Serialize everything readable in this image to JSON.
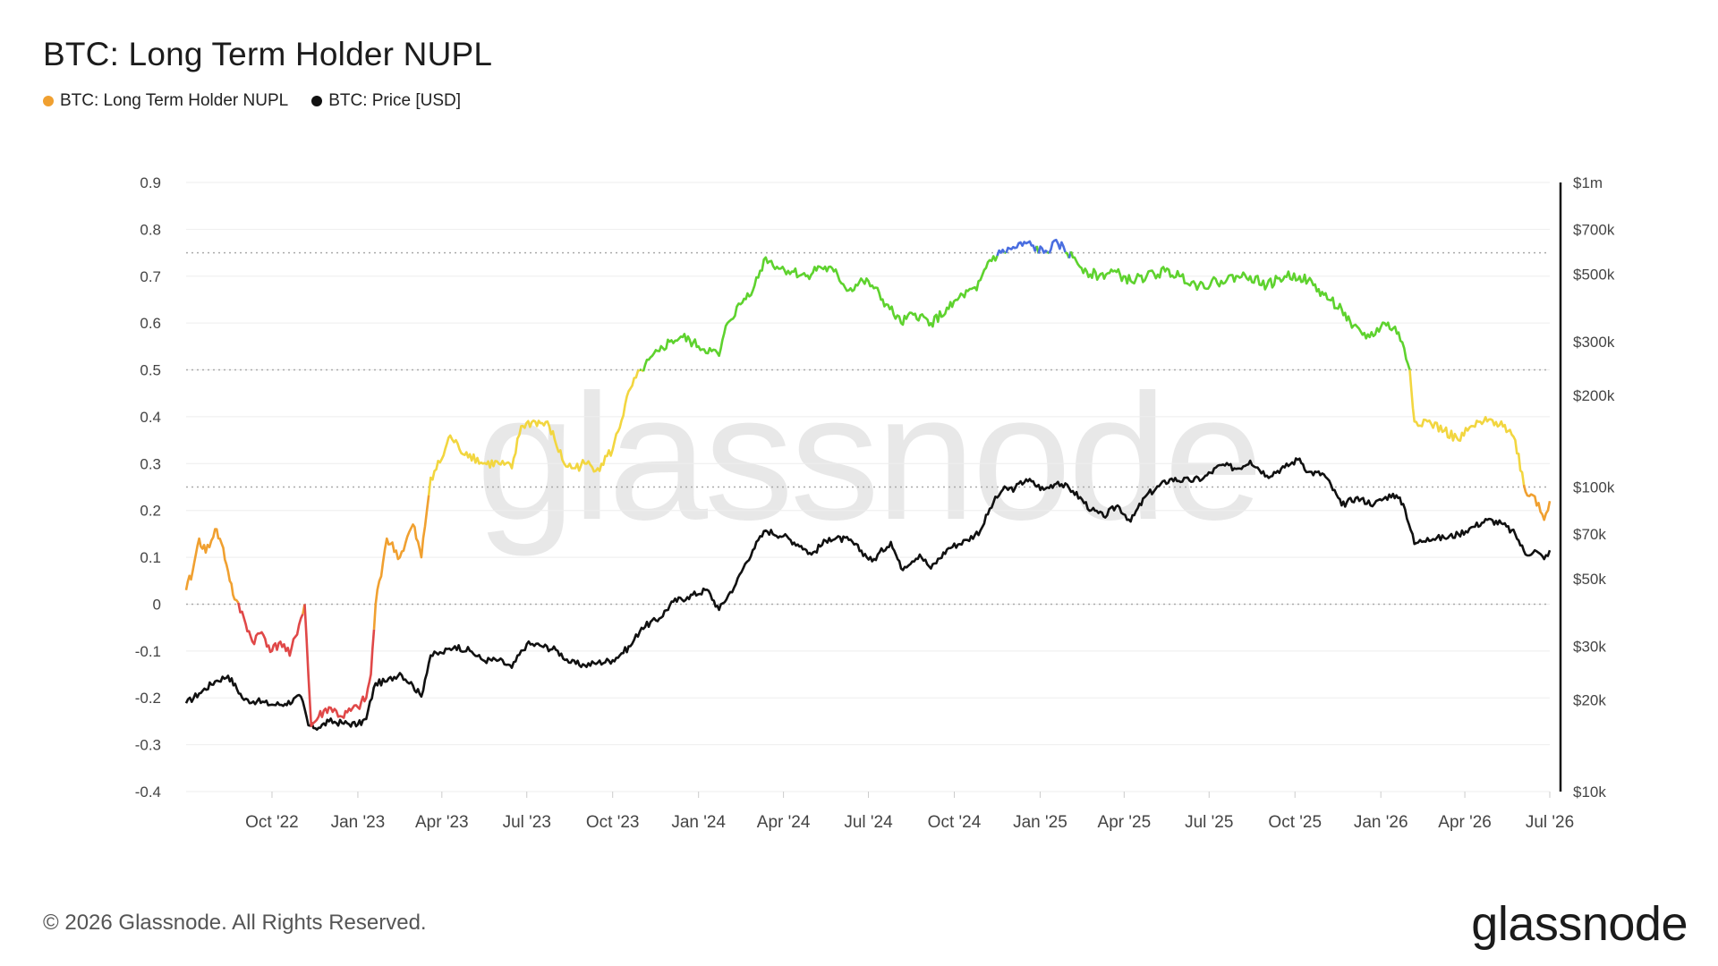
{
  "header": {
    "title": "BTC: Long Term Holder NUPL"
  },
  "legend": [
    {
      "label": "BTC: Long Term Holder NUPL",
      "color": "#f0a030"
    },
    {
      "label": "BTC: Price [USD]",
      "color": "#111111"
    }
  ],
  "footer": {
    "copyright": "© 2026 Glassnode. All Rights Reserved.",
    "brand": "glassnode",
    "watermark": "glassnode"
  },
  "chart_data": {
    "type": "line",
    "title": "BTC: Long Term Holder NUPL",
    "x_ticks": [
      "Oct '22",
      "Jan '23",
      "Apr '23",
      "Jul '23",
      "Oct '23",
      "Jan '24",
      "Apr '24",
      "Jul '24",
      "Oct '24",
      "Jan '25",
      "Apr '25",
      "Jul '25",
      "Oct '25",
      "Jan '26",
      "Apr '26",
      "Jul '26"
    ],
    "left_axis": {
      "ticks": [
        "0.9",
        "0.8",
        "0.7",
        "0.6",
        "0.5",
        "0.4",
        "0.3",
        "0.2",
        "0.1",
        "0",
        "-0.1",
        "-0.2",
        "-0.3",
        "-0.4"
      ],
      "range": [
        -0.4,
        0.9
      ]
    },
    "right_axis": {
      "scale": "log",
      "ticks": [
        "$1m",
        "$700k",
        "$500k",
        "$300k",
        "$200k",
        "$100k",
        "$70k",
        "$50k",
        "$30k",
        "$20k",
        "$10k"
      ],
      "range": [
        10000,
        1000000
      ]
    },
    "grid": true,
    "reference_lines": [
      0.75,
      0.5,
      0.25,
      0
    ],
    "zone_colors": {
      "capitulation": "#e04848",
      "hope_fear": "#f0a030",
      "optimism": "#f2d640",
      "belief": "#5ed22e",
      "euphoria": "#4a6ee0"
    },
    "series": [
      {
        "name": "BTC: Long Term Holder NUPL",
        "x": [
          "2022-07-01",
          "2022-07-08",
          "2022-07-15",
          "2022-07-22",
          "2022-08-01",
          "2022-08-08",
          "2022-08-15",
          "2022-08-22",
          "2022-09-01",
          "2022-09-10",
          "2022-09-20",
          "2022-10-01",
          "2022-10-10",
          "2022-10-20",
          "2022-11-01",
          "2022-11-05",
          "2022-11-09",
          "2022-11-12",
          "2022-11-20",
          "2022-12-01",
          "2022-12-15",
          "2023-01-01",
          "2023-01-10",
          "2023-01-15",
          "2023-01-20",
          "2023-02-01",
          "2023-02-15",
          "2023-03-01",
          "2023-03-10",
          "2023-03-20",
          "2023-04-01",
          "2023-04-10",
          "2023-04-20",
          "2023-05-01",
          "2023-05-15",
          "2023-06-01",
          "2023-06-15",
          "2023-06-25",
          "2023-07-10",
          "2023-07-25",
          "2023-08-10",
          "2023-08-20",
          "2023-09-01",
          "2023-09-15",
          "2023-10-01",
          "2023-10-20",
          "2023-11-01",
          "2023-11-20",
          "2023-12-01",
          "2023-12-15",
          "2024-01-01",
          "2024-01-15",
          "2024-01-23",
          "2024-02-01",
          "2024-02-15",
          "2024-03-01",
          "2024-03-13",
          "2024-03-25",
          "2024-04-10",
          "2024-04-25",
          "2024-05-10",
          "2024-05-25",
          "2024-06-10",
          "2024-06-25",
          "2024-07-05",
          "2024-07-20",
          "2024-08-05",
          "2024-08-20",
          "2024-09-06",
          "2024-09-25",
          "2024-10-10",
          "2024-10-25",
          "2024-11-06",
          "2024-11-20",
          "2024-12-05",
          "2024-12-17",
          "2025-01-05",
          "2025-01-20",
          "2025-02-05",
          "2025-02-20",
          "2025-03-05",
          "2025-03-20",
          "2025-04-08",
          "2025-04-25",
          "2025-05-15",
          "2025-06-01",
          "2025-06-20",
          "2025-07-14",
          "2025-08-01",
          "2025-08-14",
          "2025-09-01",
          "2025-09-20",
          "2025-10-06",
          "2025-10-15",
          "2025-11-01",
          "2025-11-20",
          "2025-12-01",
          "2025-12-20",
          "2026-01-05",
          "2026-01-20",
          "2026-02-01",
          "2026-02-06",
          "2026-02-20",
          "2026-03-10",
          "2026-03-25",
          "2026-04-10",
          "2026-04-25",
          "2026-05-10",
          "2026-05-25",
          "2026-06-05",
          "2026-06-15",
          "2026-06-25",
          "2026-07-01"
        ],
        "values": [
          0.03,
          0.07,
          0.14,
          0.11,
          0.16,
          0.13,
          0.07,
          0.01,
          -0.03,
          -0.08,
          -0.06,
          -0.1,
          -0.08,
          -0.11,
          -0.03,
          0.0,
          -0.15,
          -0.26,
          -0.24,
          -0.22,
          -0.24,
          -0.22,
          -0.2,
          -0.15,
          0.0,
          0.14,
          0.1,
          0.17,
          0.1,
          0.27,
          0.31,
          0.36,
          0.33,
          0.32,
          0.3,
          0.3,
          0.29,
          0.38,
          0.39,
          0.38,
          0.3,
          0.29,
          0.3,
          0.29,
          0.33,
          0.46,
          0.5,
          0.54,
          0.56,
          0.57,
          0.55,
          0.54,
          0.53,
          0.6,
          0.64,
          0.68,
          0.74,
          0.72,
          0.71,
          0.7,
          0.72,
          0.71,
          0.67,
          0.69,
          0.68,
          0.64,
          0.6,
          0.62,
          0.6,
          0.63,
          0.66,
          0.67,
          0.73,
          0.75,
          0.76,
          0.77,
          0.75,
          0.77,
          0.74,
          0.71,
          0.7,
          0.71,
          0.69,
          0.7,
          0.71,
          0.7,
          0.68,
          0.69,
          0.7,
          0.7,
          0.68,
          0.7,
          0.7,
          0.69,
          0.66,
          0.63,
          0.59,
          0.57,
          0.6,
          0.58,
          0.5,
          0.39,
          0.39,
          0.37,
          0.35,
          0.38,
          0.39,
          0.39,
          0.35,
          0.24,
          0.23,
          0.18,
          0.22
        ]
      },
      {
        "name": "BTC: Price [USD]",
        "x": [
          "2022-07-01",
          "2022-07-15",
          "2022-08-01",
          "2022-08-15",
          "2022-09-01",
          "2022-09-15",
          "2022-10-01",
          "2022-10-15",
          "2022-11-01",
          "2022-11-09",
          "2022-11-20",
          "2022-12-01",
          "2022-12-15",
          "2023-01-01",
          "2023-01-10",
          "2023-01-20",
          "2023-02-01",
          "2023-02-15",
          "2023-03-01",
          "2023-03-10",
          "2023-03-20",
          "2023-04-01",
          "2023-04-15",
          "2023-05-01",
          "2023-05-15",
          "2023-06-01",
          "2023-06-15",
          "2023-07-01",
          "2023-07-15",
          "2023-08-01",
          "2023-08-17",
          "2023-09-01",
          "2023-09-15",
          "2023-10-01",
          "2023-10-20",
          "2023-11-01",
          "2023-11-20",
          "2023-12-05",
          "2023-12-20",
          "2024-01-10",
          "2024-01-23",
          "2024-02-10",
          "2024-02-28",
          "2024-03-13",
          "2024-04-01",
          "2024-04-20",
          "2024-05-01",
          "2024-05-20",
          "2024-06-10",
          "2024-07-05",
          "2024-07-25",
          "2024-08-05",
          "2024-08-25",
          "2024-09-06",
          "2024-09-25",
          "2024-10-15",
          "2024-10-29",
          "2024-11-12",
          "2024-11-22",
          "2024-12-05",
          "2024-12-17",
          "2025-01-05",
          "2025-01-20",
          "2025-02-05",
          "2025-02-25",
          "2025-03-10",
          "2025-03-25",
          "2025-04-08",
          "2025-04-25",
          "2025-05-20",
          "2025-06-10",
          "2025-06-25",
          "2025-07-14",
          "2025-08-01",
          "2025-08-14",
          "2025-09-01",
          "2025-09-20",
          "2025-10-06",
          "2025-10-15",
          "2025-11-01",
          "2025-11-20",
          "2025-12-05",
          "2025-12-25",
          "2026-01-14",
          "2026-01-25",
          "2026-02-06",
          "2026-02-20",
          "2026-03-10",
          "2026-03-25",
          "2026-04-10",
          "2026-04-25",
          "2026-05-10",
          "2026-05-25",
          "2026-06-05",
          "2026-06-15",
          "2026-06-25",
          "2026-07-01"
        ],
        "values": [
          19500,
          21000,
          23000,
          24000,
          20000,
          19800,
          19300,
          19400,
          20500,
          16500,
          16200,
          17000,
          16800,
          16600,
          17300,
          22700,
          23000,
          24500,
          22300,
          20500,
          28000,
          28500,
          30000,
          29000,
          27000,
          27000,
          25500,
          30500,
          30200,
          29200,
          26500,
          26000,
          26500,
          27000,
          30000,
          34500,
          37000,
          42000,
          43500,
          46000,
          39500,
          48000,
          62000,
          72000,
          69000,
          64000,
          60000,
          68000,
          67000,
          57000,
          66000,
          54000,
          60000,
          54000,
          63000,
          67000,
          72000,
          89000,
          98000,
          99000,
          106000,
          98000,
          104000,
          97000,
          84000,
          80000,
          87000,
          77000,
          94000,
          106000,
          105000,
          107000,
          118000,
          115000,
          122000,
          109000,
          116000,
          124000,
          112000,
          110000,
          87000,
          92000,
          88000,
          95000,
          88000,
          65000,
          68000,
          68000,
          70000,
          74000,
          78000,
          76000,
          70000,
          60000,
          62000,
          58000,
          62000
        ]
      }
    ]
  }
}
